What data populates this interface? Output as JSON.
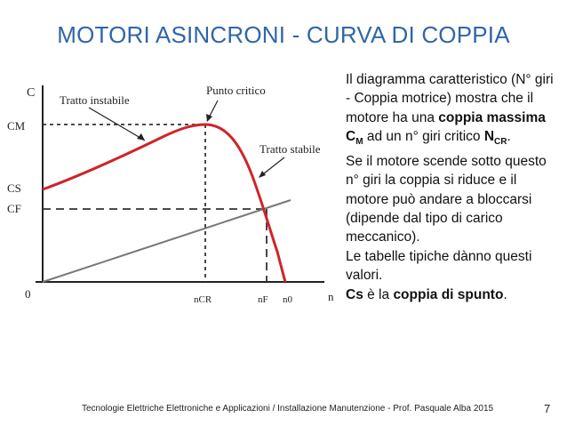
{
  "slide": {
    "title": "MOTORI ASINCRONI - CURVA DI COPPIA",
    "footer": "Tecnologie Elettriche Elettroniche e Applicazioni / Installazione Manutenzione  - Prof. Pasquale Alba 2015",
    "page_number": "7"
  },
  "diagram": {
    "y_axis_label": "C",
    "x_axis_label": "n",
    "origin_label": "0",
    "label_cm": "CM",
    "label_cs": "CS",
    "label_cf": "CF",
    "label_ncr": "nCR",
    "label_nf": "nF",
    "label_n0": "n0",
    "annotation_unstable": "Tratto instabile",
    "annotation_critical": "Punto critico",
    "annotation_stable": "Tratto stabile"
  },
  "description": {
    "p1_part1": "Il diagramma caratteristico (N° giri - Coppia motrice) mostra che il motore ha una ",
    "p1_bold1": "coppia massima C",
    "p1_bold1_sub": "M",
    "p1_part2": " ad un n° giri critico ",
    "p1_bold2": "N",
    "p1_bold2_sub": "CR",
    "p1_part3": ".",
    "p2": "Se il motore scende sotto questo n° giri la coppia si riduce e il motore può andare a bloccarsi (dipende dal tipo di carico meccanico).",
    "p3": "Le tabelle tipiche dànno questi valori.",
    "p4_bold1": "Cs",
    "p4_part1": " è la ",
    "p4_bold2": "coppia di spunto",
    "p4_part2": "."
  }
}
